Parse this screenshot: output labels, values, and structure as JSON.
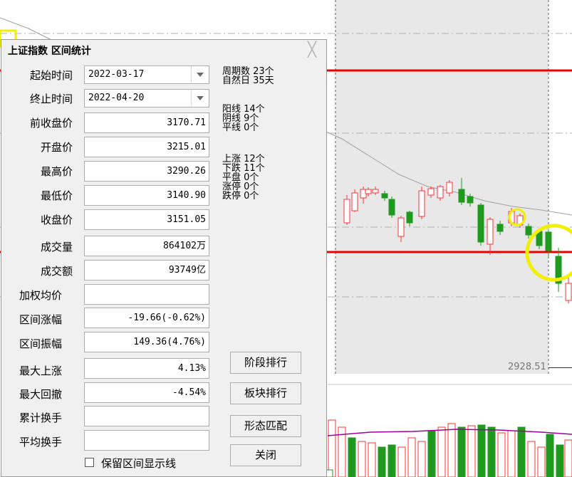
{
  "dialog": {
    "title": "上证指数 区间统计",
    "close_glyph": "╳",
    "start": {
      "label": "起始时间",
      "value": "2022-03-17"
    },
    "end": {
      "label": "终止时间",
      "value": "2022-04-20"
    },
    "fields": [
      {
        "label": "前收盘价",
        "value": "3170.71"
      },
      {
        "label": "开盘价",
        "value": "3215.01"
      },
      {
        "label": "最高价",
        "value": "3290.26"
      },
      {
        "label": "最低价",
        "value": "3140.90"
      },
      {
        "label": "收盘价",
        "value": "3151.05"
      },
      {
        "label": "成交量",
        "value": "864102万"
      },
      {
        "label": "成交额",
        "value": "93749亿"
      },
      {
        "label": "加权均价",
        "value": ""
      },
      {
        "label": "区间涨幅",
        "value": "-19.66(-0.62%)"
      },
      {
        "label": "区间振幅",
        "value": "149.36(4.76%)"
      },
      {
        "label": "最大上涨",
        "value": "4.13%"
      },
      {
        "label": "最大回撤",
        "value": "-4.54%"
      },
      {
        "label": "累计换手",
        "value": ""
      },
      {
        "label": "平均换手",
        "value": ""
      }
    ],
    "stats": {
      "period_count": "周期数 23个",
      "natural_days": "自然日 35天",
      "yang": "阳线 14个",
      "yin": "阴线 9个",
      "flat_line": "平线 0个",
      "up": "上涨 12个",
      "down": "下跌 11个",
      "flat": "平盘 0个",
      "limit_up": "涨停 0个",
      "limit_down": "跌停 0个"
    },
    "buttons": {
      "rank_stage": "阶段排行",
      "rank_sector": "板块排行",
      "pattern_match": "形态匹配",
      "close": "关闭"
    },
    "checkbox_label": "保留区间显示线"
  },
  "chart": {
    "price_label": "2928.51",
    "colors": {
      "up": "#ff3232",
      "down": "#1f9a1f",
      "ma": "#a0a0a0",
      "vol_ma": "#a000a0",
      "mark": "#f0f000"
    }
  }
}
